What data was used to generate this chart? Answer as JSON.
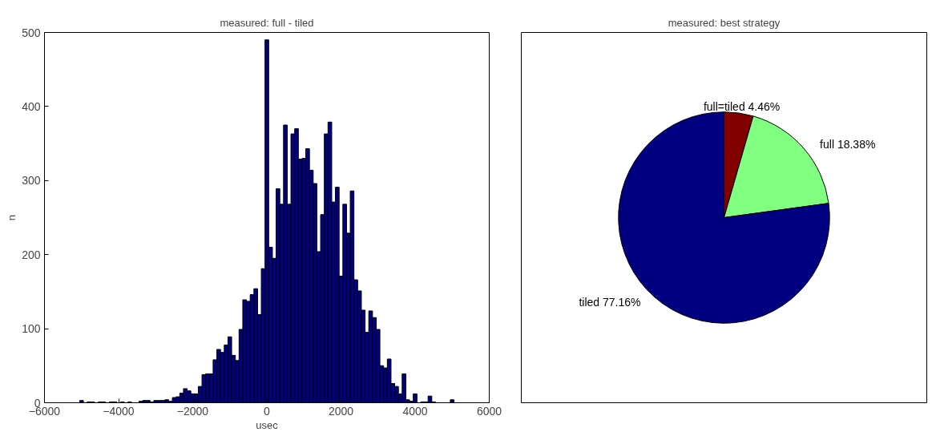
{
  "chart_data": [
    {
      "type": "histogram",
      "title": "measured: full - tiled",
      "xlabel": "usec",
      "ylabel": "n",
      "color": "#000080",
      "bins": [
        -5050,
        -4950,
        -4850,
        -4750,
        -4650,
        -4550,
        -4450,
        -4350,
        -4250,
        -4150,
        -4050,
        -3950,
        -3850,
        -3750,
        -3650,
        -3550,
        -3450,
        -3350,
        -3250,
        -3150,
        -3050,
        -2950,
        -2850,
        -2750,
        -2650,
        -2550,
        -2450,
        -2350,
        -2250,
        -2150,
        -2050,
        -1950,
        -1850,
        -1750,
        -1650,
        -1550,
        -1450,
        -1350,
        -1250,
        -1150,
        -1050,
        -950,
        -850,
        -750,
        -650,
        -550,
        -450,
        -350,
        -250,
        -150,
        -50,
        50,
        150,
        250,
        350,
        450,
        550,
        650,
        750,
        850,
        950,
        1050,
        1150,
        1250,
        1350,
        1450,
        1550,
        1650,
        1750,
        1850,
        1950,
        2050,
        2150,
        2250,
        2350,
        2450,
        2550,
        2650,
        2750,
        2850,
        2950,
        3050,
        3150,
        3250,
        3350,
        3450,
        3550,
        3650,
        3750,
        3850,
        3950,
        4050,
        4150,
        4250,
        4350,
        4450,
        4550,
        4650,
        4750,
        4850,
        4950,
        5050
      ],
      "values": [
        3,
        0,
        1,
        1,
        0,
        1,
        1,
        0,
        1,
        1,
        0,
        1,
        null,
        1,
        null,
        null,
        2,
        3,
        3,
        1,
        3,
        3,
        3,
        4,
        2,
        7,
        8,
        13,
        19,
        16,
        12,
        12,
        22,
        38,
        39,
        39,
        58,
        72,
        68,
        78,
        89,
        64,
        57,
        99,
        139,
        137,
        146,
        154,
        119,
        181,
        490,
        210,
        195,
        289,
        268,
        375,
        268,
        363,
        370,
        329,
        330,
        343,
        314,
        296,
        204,
        254,
        363,
        379,
        271,
        291,
        171,
        268,
        229,
        286,
        166,
        151,
        125,
        95,
        124,
        115,
        99,
        50,
        47,
        59,
        26,
        22,
        12,
        39,
        4,
        2,
        12,
        0,
        1,
        1,
        9,
        1,
        0,
        0,
        0,
        0,
        4
      ],
      "xlim": [
        -6000,
        6000
      ],
      "xticks": [
        -6000,
        -4000,
        -2000,
        0,
        2000,
        4000,
        6000
      ],
      "ylim": [
        0,
        500
      ],
      "yticks": [
        0,
        100,
        200,
        300,
        400,
        500
      ],
      "grid": false
    },
    {
      "type": "pie",
      "title": "measured: best strategy",
      "categories": [
        "full=tiled",
        "full",
        "tiled"
      ],
      "values": [
        4.46,
        18.38,
        77.16
      ],
      "colors": [
        "#800000",
        "#80ff80",
        "#000080"
      ],
      "value_labels": [
        "4.46%",
        "18.38%",
        "77.16%"
      ]
    }
  ]
}
